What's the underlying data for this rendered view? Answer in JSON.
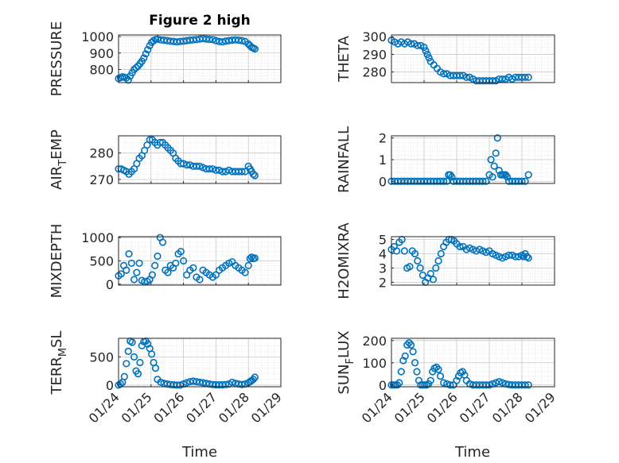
{
  "figure_title": "Figure 2 high",
  "marker_color": "#0072BD",
  "x_tick_labels": [
    "01/24",
    "01/25",
    "01/26",
    "01/27",
    "01/28",
    "01/29"
  ],
  "chart_data": [
    {
      "type": "scatter",
      "ylabel": "PRESSURE",
      "ylabel_parts": [
        "PRESSURE"
      ],
      "xlim": [
        0,
        5
      ],
      "ylim": [
        720,
        1010
      ],
      "yticks": [
        800,
        900,
        1000
      ],
      "grid": true,
      "x": [
        0.0,
        0.06,
        0.12,
        0.18,
        0.24,
        0.3,
        0.36,
        0.42,
        0.48,
        0.54,
        0.6,
        0.66,
        0.72,
        0.78,
        0.84,
        0.9,
        0.96,
        1.02,
        1.08,
        1.14,
        1.2,
        1.3,
        1.4,
        1.5,
        1.6,
        1.7,
        1.8,
        1.9,
        2.0,
        2.1,
        2.2,
        2.3,
        2.4,
        2.5,
        2.6,
        2.7,
        2.8,
        2.9,
        3.0,
        3.1,
        3.2,
        3.3,
        3.4,
        3.5,
        3.6,
        3.7,
        3.8,
        3.9,
        4.0,
        4.05,
        4.1,
        4.15,
        4.2
      ],
      "y": [
        745,
        750,
        755,
        752,
        748,
        735,
        760,
        780,
        800,
        810,
        820,
        835,
        850,
        870,
        895,
        920,
        945,
        965,
        975,
        982,
        985,
        980,
        978,
        975,
        972,
        970,
        968,
        970,
        972,
        975,
        978,
        980,
        982,
        985,
        988,
        985,
        983,
        982,
        975,
        970,
        968,
        972,
        975,
        978,
        980,
        978,
        975,
        970,
        955,
        945,
        935,
        930,
        925
      ]
    },
    {
      "type": "scatter",
      "ylabel": "THETA",
      "ylabel_parts": [
        "THETA"
      ],
      "xlim": [
        0,
        5
      ],
      "ylim": [
        274,
        301
      ],
      "yticks": [
        280,
        290,
        300
      ],
      "grid": true,
      "x": [
        0.0,
        0.1,
        0.2,
        0.3,
        0.4,
        0.5,
        0.6,
        0.7,
        0.8,
        0.9,
        1.0,
        1.05,
        1.1,
        1.15,
        1.2,
        1.3,
        1.4,
        1.5,
        1.6,
        1.7,
        1.8,
        1.9,
        2.0,
        2.1,
        2.2,
        2.3,
        2.4,
        2.5,
        2.6,
        2.7,
        2.8,
        2.9,
        3.0,
        3.1,
        3.2,
        3.3,
        3.4,
        3.5,
        3.6,
        3.7,
        3.8,
        3.9,
        4.0,
        4.1,
        4.2
      ],
      "y": [
        298,
        297,
        296,
        297,
        296,
        297,
        296,
        296,
        295,
        295,
        294,
        292,
        290,
        288,
        286,
        284,
        282,
        280,
        279,
        279,
        278,
        278,
        278,
        278,
        278,
        277,
        277,
        276,
        275,
        275,
        275,
        275,
        275,
        275,
        275,
        276,
        276,
        276,
        277,
        276,
        277,
        277,
        277,
        277,
        277
      ]
    },
    {
      "type": "scatter",
      "ylabel": "AIR_TEMP",
      "ylabel_parts": [
        "AIR",
        "T",
        "EMP"
      ],
      "xlim": [
        0,
        5
      ],
      "ylim": [
        268.5,
        286.5
      ],
      "yticks": [
        270,
        280
      ],
      "grid": true,
      "x": [
        0.0,
        0.08,
        0.16,
        0.24,
        0.32,
        0.4,
        0.48,
        0.56,
        0.64,
        0.72,
        0.8,
        0.88,
        0.96,
        1.04,
        1.12,
        1.2,
        1.28,
        1.36,
        1.44,
        1.52,
        1.6,
        1.68,
        1.76,
        1.84,
        1.92,
        2.0,
        2.1,
        2.2,
        2.3,
        2.4,
        2.5,
        2.6,
        2.7,
        2.8,
        2.9,
        3.0,
        3.1,
        3.2,
        3.3,
        3.4,
        3.5,
        3.6,
        3.7,
        3.8,
        3.9,
        4.0,
        4.05,
        4.1,
        4.15,
        4.2
      ],
      "y": [
        274,
        274,
        273.5,
        273,
        272,
        273,
        274,
        276,
        278,
        279,
        281,
        283,
        285,
        285,
        284,
        283,
        284,
        284,
        283,
        282,
        281,
        280,
        278,
        277,
        276,
        276,
        275.5,
        275.5,
        275,
        275,
        275,
        274.5,
        274,
        274,
        274,
        273.5,
        273.5,
        273,
        273,
        273.5,
        273,
        273,
        273,
        273,
        273,
        275,
        274,
        273,
        272,
        271.5
      ]
    },
    {
      "type": "scatter",
      "ylabel": "RAINFALL",
      "ylabel_parts": [
        "RAINFALL"
      ],
      "xlim": [
        0,
        5
      ],
      "ylim": [
        -0.1,
        2.1
      ],
      "yticks": [
        0,
        1,
        2
      ],
      "grid": true,
      "x": [
        0.0,
        0.1,
        0.2,
        0.3,
        0.4,
        0.5,
        0.6,
        0.7,
        0.8,
        0.9,
        1.0,
        1.1,
        1.2,
        1.3,
        1.4,
        1.5,
        1.6,
        1.7,
        1.75,
        1.8,
        1.85,
        1.9,
        2.0,
        2.1,
        2.2,
        2.3,
        2.4,
        2.5,
        2.6,
        2.7,
        2.8,
        2.9,
        3.0,
        3.05,
        3.1,
        3.15,
        3.2,
        3.25,
        3.3,
        3.35,
        3.4,
        3.45,
        3.5,
        3.55,
        3.6,
        3.7,
        3.8,
        3.9,
        4.0,
        4.1,
        4.2
      ],
      "y": [
        0,
        0,
        0,
        0,
        0,
        0,
        0,
        0,
        0,
        0,
        0,
        0,
        0,
        0,
        0,
        0,
        0,
        0,
        0.3,
        0.3,
        0.2,
        0,
        0,
        0,
        0,
        0,
        0,
        0,
        0,
        0,
        0,
        0,
        0.3,
        1.0,
        0.2,
        0.7,
        1.3,
        2.0,
        0.5,
        0.3,
        0.3,
        0.3,
        0.3,
        0.2,
        0,
        0,
        0,
        0,
        0,
        0,
        0.3
      ]
    },
    {
      "type": "scatter",
      "ylabel": "MIXDEPTH",
      "ylabel_parts": [
        "MIXDEPTH"
      ],
      "xlim": [
        0,
        5
      ],
      "ylim": [
        -20,
        1020
      ],
      "yticks": [
        0,
        500,
        1000
      ],
      "grid": true,
      "x": [
        0.0,
        0.08,
        0.16,
        0.24,
        0.32,
        0.4,
        0.48,
        0.56,
        0.64,
        0.72,
        0.8,
        0.88,
        0.96,
        1.04,
        1.12,
        1.2,
        1.28,
        1.36,
        1.44,
        1.52,
        1.6,
        1.68,
        1.76,
        1.84,
        1.92,
        2.0,
        2.1,
        2.2,
        2.3,
        2.4,
        2.5,
        2.6,
        2.7,
        2.8,
        2.9,
        3.0,
        3.1,
        3.2,
        3.3,
        3.4,
        3.5,
        3.6,
        3.7,
        3.8,
        3.9,
        4.0,
        4.05,
        4.1,
        4.15,
        4.2
      ],
      "y": [
        180,
        220,
        400,
        300,
        650,
        450,
        100,
        250,
        450,
        80,
        50,
        60,
        100,
        200,
        400,
        600,
        1000,
        900,
        300,
        250,
        400,
        350,
        450,
        650,
        700,
        500,
        200,
        300,
        350,
        150,
        100,
        300,
        250,
        200,
        150,
        200,
        300,
        350,
        400,
        450,
        480,
        400,
        350,
        300,
        250,
        400,
        550,
        580,
        550,
        560
      ]
    },
    {
      "type": "scatter",
      "ylabel": "H2OMIXRA",
      "ylabel_parts": [
        "H2OMIXRA"
      ],
      "xlim": [
        0,
        5
      ],
      "ylim": [
        1.8,
        5.2
      ],
      "yticks": [
        2,
        3,
        4,
        5
      ],
      "grid": true,
      "x": [
        0.0,
        0.08,
        0.16,
        0.24,
        0.32,
        0.4,
        0.48,
        0.56,
        0.64,
        0.72,
        0.8,
        0.88,
        0.96,
        1.04,
        1.12,
        1.2,
        1.28,
        1.36,
        1.44,
        1.52,
        1.6,
        1.68,
        1.76,
        1.84,
        1.92,
        2.0,
        2.1,
        2.2,
        2.3,
        2.4,
        2.5,
        2.6,
        2.7,
        2.8,
        2.9,
        3.0,
        3.1,
        3.2,
        3.3,
        3.4,
        3.5,
        3.6,
        3.7,
        3.8,
        3.9,
        4.0,
        4.05,
        4.1,
        4.15,
        4.2
      ],
      "y": [
        4.3,
        4.5,
        4.2,
        4.8,
        5.0,
        4.2,
        3.0,
        3.1,
        4.2,
        4.0,
        3.5,
        3.0,
        2.5,
        2.0,
        2.3,
        2.6,
        2.2,
        3.0,
        3.5,
        4.0,
        4.5,
        4.8,
        5.0,
        5.0,
        4.9,
        4.7,
        4.5,
        4.5,
        4.3,
        4.4,
        4.3,
        4.2,
        4.3,
        4.2,
        4.1,
        4.2,
        4.0,
        3.9,
        3.8,
        3.7,
        3.8,
        3.9,
        3.9,
        3.8,
        3.8,
        3.9,
        3.8,
        4.0,
        3.8,
        3.7
      ]
    },
    {
      "type": "scatter",
      "ylabel": "TERR_MSL",
      "ylabel_parts": [
        "TERR",
        "M",
        "SL"
      ],
      "xlim": [
        0,
        5
      ],
      "ylim": [
        -30,
        830
      ],
      "yticks": [
        0,
        500
      ],
      "grid": true,
      "x": [
        0.0,
        0.06,
        0.12,
        0.18,
        0.24,
        0.3,
        0.36,
        0.42,
        0.48,
        0.54,
        0.6,
        0.66,
        0.72,
        0.78,
        0.84,
        0.9,
        0.96,
        1.02,
        1.08,
        1.14,
        1.2,
        1.3,
        1.4,
        1.5,
        1.6,
        1.7,
        1.8,
        1.9,
        2.0,
        2.1,
        2.2,
        2.3,
        2.4,
        2.5,
        2.6,
        2.7,
        2.8,
        2.9,
        3.0,
        3.1,
        3.2,
        3.3,
        3.4,
        3.5,
        3.6,
        3.7,
        3.8,
        3.9,
        4.0,
        4.05,
        4.1,
        4.15,
        4.2
      ],
      "y": [
        0,
        20,
        50,
        150,
        380,
        600,
        780,
        760,
        500,
        250,
        200,
        400,
        700,
        770,
        780,
        730,
        650,
        550,
        400,
        300,
        100,
        50,
        30,
        20,
        10,
        5,
        0,
        0,
        20,
        40,
        60,
        70,
        60,
        50,
        40,
        30,
        20,
        10,
        5,
        5,
        5,
        10,
        20,
        50,
        30,
        20,
        10,
        20,
        40,
        60,
        80,
        100,
        140
      ]
    },
    {
      "type": "scatter",
      "ylabel": "SUN_FLUX",
      "ylabel_parts": [
        "SUN",
        "F",
        "LUX"
      ],
      "xlim": [
        0,
        5
      ],
      "ylim": [
        -8,
        210
      ],
      "yticks": [
        0,
        100,
        200
      ],
      "grid": true,
      "x": [
        0.0,
        0.06,
        0.12,
        0.18,
        0.24,
        0.3,
        0.36,
        0.42,
        0.48,
        0.54,
        0.6,
        0.66,
        0.72,
        0.78,
        0.84,
        0.9,
        0.96,
        1.02,
        1.08,
        1.14,
        1.2,
        1.26,
        1.32,
        1.38,
        1.44,
        1.5,
        1.6,
        1.7,
        1.8,
        1.9,
        2.0,
        2.06,
        2.12,
        2.18,
        2.24,
        2.3,
        2.4,
        2.5,
        2.6,
        2.7,
        2.8,
        2.9,
        3.0,
        3.1,
        3.2,
        3.3,
        3.4,
        3.5,
        3.6,
        3.7,
        3.8,
        3.9,
        4.0,
        4.1,
        4.2
      ],
      "y": [
        0,
        0,
        0,
        0,
        10,
        60,
        110,
        130,
        180,
        190,
        180,
        150,
        100,
        60,
        20,
        0,
        0,
        0,
        0,
        5,
        20,
        60,
        75,
        80,
        70,
        40,
        10,
        5,
        0,
        0,
        20,
        40,
        55,
        60,
        45,
        20,
        5,
        0,
        0,
        0,
        0,
        0,
        0,
        5,
        10,
        15,
        10,
        5,
        2,
        0,
        0,
        0,
        0,
        0,
        0
      ]
    }
  ],
  "bottom_xlabels": [
    "Time",
    "Time"
  ]
}
